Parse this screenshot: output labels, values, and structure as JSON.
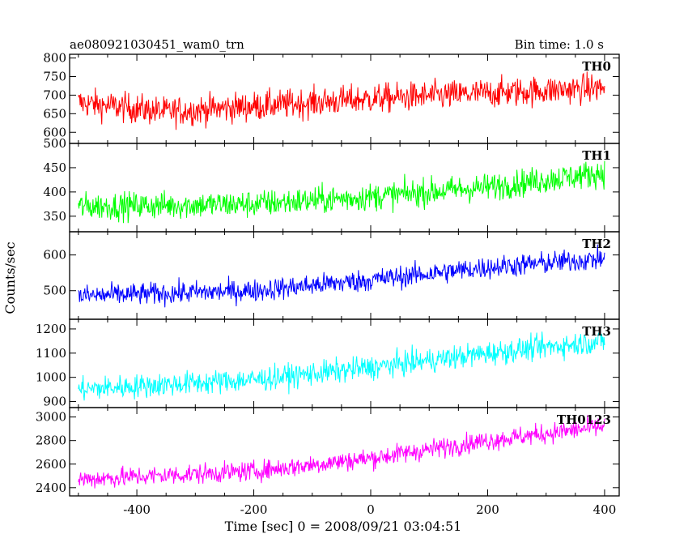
{
  "header": {
    "left_title": "ae080921030451_wam0_trn",
    "right_title": "Bin time: 1.0 s"
  },
  "chart_data": {
    "type": "line",
    "title": "ae080921030451_wam0_trn",
    "subtitle": "Bin time: 1.0 s",
    "xlabel": "Time [sec] 0 = 2008/09/21 03:04:51",
    "ylabel": "Counts/sec",
    "xlim": [
      -515,
      425
    ],
    "x_ticks": [
      -400,
      -200,
      0,
      200,
      400
    ],
    "x_range": [
      -500,
      400
    ],
    "x_step": 1.0,
    "grid": false,
    "panels": [
      {
        "label": "TH0",
        "color": "#ff0000",
        "ylim": [
          570,
          810
        ],
        "y_ticks": [
          600,
          650,
          700,
          750,
          800
        ],
        "trend": [
          [
            -500,
            680
          ],
          [
            -350,
            655
          ],
          [
            -200,
            670
          ],
          [
            0,
            690
          ],
          [
            200,
            705
          ],
          [
            400,
            720
          ]
        ],
        "noise": 28
      },
      {
        "label": "TH1",
        "color": "#00ff00",
        "ylim": [
          318,
          500
        ],
        "y_ticks": [
          350,
          400,
          450,
          500
        ],
        "trend": [
          [
            -500,
            370
          ],
          [
            -200,
            375
          ],
          [
            0,
            390
          ],
          [
            200,
            410
          ],
          [
            400,
            440
          ]
        ],
        "noise": 20
      },
      {
        "label": "TH2",
        "color": "#0000ff",
        "ylim": [
          420,
          665
        ],
        "y_ticks": [
          500,
          600
        ],
        "trend": [
          [
            -500,
            485
          ],
          [
            -200,
            500
          ],
          [
            0,
            530
          ],
          [
            200,
            565
          ],
          [
            400,
            590
          ]
        ],
        "noise": 22
      },
      {
        "label": "TH3",
        "color": "#00ffff",
        "ylim": [
          875,
          1240
        ],
        "y_ticks": [
          900,
          1000,
          1100,
          1200
        ],
        "trend": [
          [
            -500,
            950
          ],
          [
            -200,
            990
          ],
          [
            0,
            1040
          ],
          [
            200,
            1100
          ],
          [
            400,
            1150
          ]
        ],
        "noise": 35
      },
      {
        "label": "TH0123",
        "color": "#ff00ff",
        "ylim": [
          2330,
          3080
        ],
        "y_ticks": [
          2400,
          2600,
          2800,
          3000
        ],
        "trend": [
          [
            -500,
            2470
          ],
          [
            -200,
            2540
          ],
          [
            0,
            2650
          ],
          [
            200,
            2800
          ],
          [
            400,
            2920
          ]
        ],
        "noise": 60
      }
    ]
  }
}
